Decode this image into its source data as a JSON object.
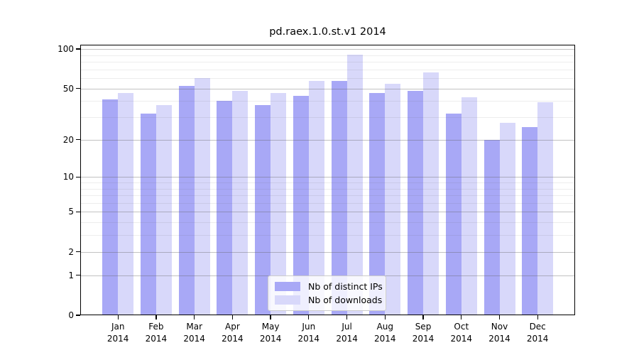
{
  "chart_data": {
    "type": "bar",
    "title": "pd.raex.1.0.st.v1 2014",
    "categories": [
      "Jan 2014",
      "Feb 2014",
      "Mar 2014",
      "Apr 2014",
      "May 2014",
      "Jun 2014",
      "Jul 2014",
      "Aug 2014",
      "Sep 2014",
      "Oct 2014",
      "Nov 2014",
      "Dec 2014"
    ],
    "series": [
      {
        "name": "Nb of distinct IPs",
        "color": "#a8a8f6",
        "values": [
          41,
          32,
          52,
          40,
          37,
          44,
          57,
          46,
          48,
          32,
          20,
          25
        ]
      },
      {
        "name": "Nb of downloads",
        "color": "#d8d8fa",
        "values": [
          46,
          37,
          60,
          48,
          46,
          57,
          90,
          54,
          66,
          43,
          27,
          39
        ]
      }
    ],
    "yscale": "log1p",
    "yticks": [
      100,
      50,
      20,
      10,
      5,
      2,
      1,
      0
    ],
    "minor_gridlines": [
      3,
      4,
      6,
      7,
      8,
      9,
      30,
      40,
      60,
      70,
      80,
      90
    ],
    "ylim": [
      0,
      108
    ],
    "xlabel": "",
    "ylabel": "",
    "grid": true,
    "legend_position": "lower center"
  },
  "colors": {
    "series1": "#a8a8f6",
    "series2": "#d8d8fa",
    "axis": "#000000",
    "background": "#ffffff"
  }
}
